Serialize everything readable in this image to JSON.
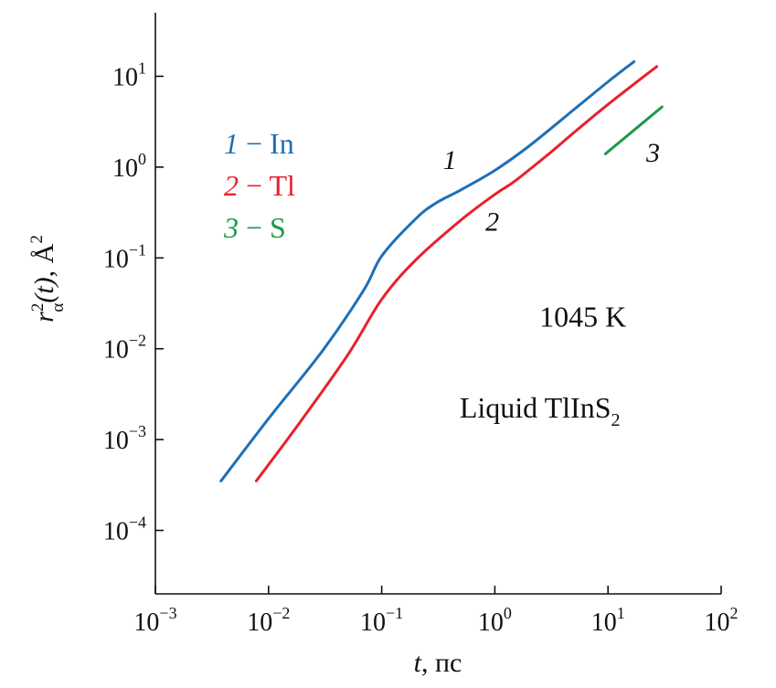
{
  "chart_data": {
    "type": "line",
    "x_scale": "log",
    "y_scale": "log",
    "xlim": [
      0.001,
      100
    ],
    "ylim": [
      2e-05,
      50
    ],
    "xlabel": {
      "var": "t",
      "rest": ", пс"
    },
    "ylabel": {
      "base": "r",
      "sup": "2",
      "sub": "α",
      "arg": "(t)",
      "rest": ", Å",
      "unit_sup": "2"
    },
    "x_ticks": [
      {
        "value": 0.001,
        "base": "10",
        "exp": "−3"
      },
      {
        "value": 0.01,
        "base": "10",
        "exp": "−2"
      },
      {
        "value": 0.1,
        "base": "10",
        "exp": "−1"
      },
      {
        "value": 1,
        "base": "10",
        "exp": "0"
      },
      {
        "value": 10,
        "base": "10",
        "exp": "1"
      },
      {
        "value": 100,
        "base": "10",
        "exp": "2"
      }
    ],
    "y_ticks": [
      {
        "value": 0.0001,
        "base": "10",
        "exp": "−4"
      },
      {
        "value": 0.001,
        "base": "10",
        "exp": "−3"
      },
      {
        "value": 0.01,
        "base": "10",
        "exp": "−2"
      },
      {
        "value": 0.1,
        "base": "10",
        "exp": "−1"
      },
      {
        "value": 1,
        "base": "10",
        "exp": "0"
      },
      {
        "value": 10,
        "base": "10",
        "exp": "1"
      }
    ],
    "series": [
      {
        "name": "In",
        "number": "1",
        "color": "#1f6fb5",
        "points": [
          [
            0.0038,
            0.00035
          ],
          [
            0.01,
            0.0017
          ],
          [
            0.03,
            0.0095
          ],
          [
            0.07,
            0.045
          ],
          [
            0.1,
            0.105
          ],
          [
            0.2,
            0.27
          ],
          [
            0.3,
            0.4
          ],
          [
            0.5,
            0.56
          ],
          [
            1,
            0.92
          ],
          [
            2,
            1.7
          ],
          [
            5,
            4.3
          ],
          [
            10,
            8.7
          ],
          [
            17,
            14.5
          ]
        ]
      },
      {
        "name": "Tl",
        "number": "2",
        "color": "#e8202a",
        "points": [
          [
            0.0078,
            0.00035
          ],
          [
            0.02,
            0.0017
          ],
          [
            0.05,
            0.0085
          ],
          [
            0.1,
            0.035
          ],
          [
            0.2,
            0.095
          ],
          [
            0.5,
            0.26
          ],
          [
            1,
            0.5
          ],
          [
            1.5,
            0.7
          ],
          [
            3,
            1.4
          ],
          [
            5,
            2.4
          ],
          [
            10,
            4.9
          ],
          [
            27,
            12.8
          ]
        ]
      },
      {
        "name": "S",
        "number": "3",
        "color": "#1a9a48",
        "points": [
          [
            9.5,
            1.4
          ],
          [
            30,
            4.6
          ]
        ]
      }
    ],
    "curve_labels": [
      {
        "text": "1",
        "x": 0.4,
        "y": 0.95
      },
      {
        "text": "2",
        "x": 0.95,
        "y": 0.2
      },
      {
        "text": "3",
        "x": 25,
        "y": 1.15
      }
    ],
    "legend": {
      "placement": "top-left",
      "separator": "−"
    },
    "annotations": [
      {
        "text": "1045 K",
        "x": 6,
        "y": 0.0175
      },
      {
        "text": "Liquid TlInS",
        "sub": "2",
        "x": 2.5,
        "y": 0.00175
      }
    ],
    "grid": false
  }
}
